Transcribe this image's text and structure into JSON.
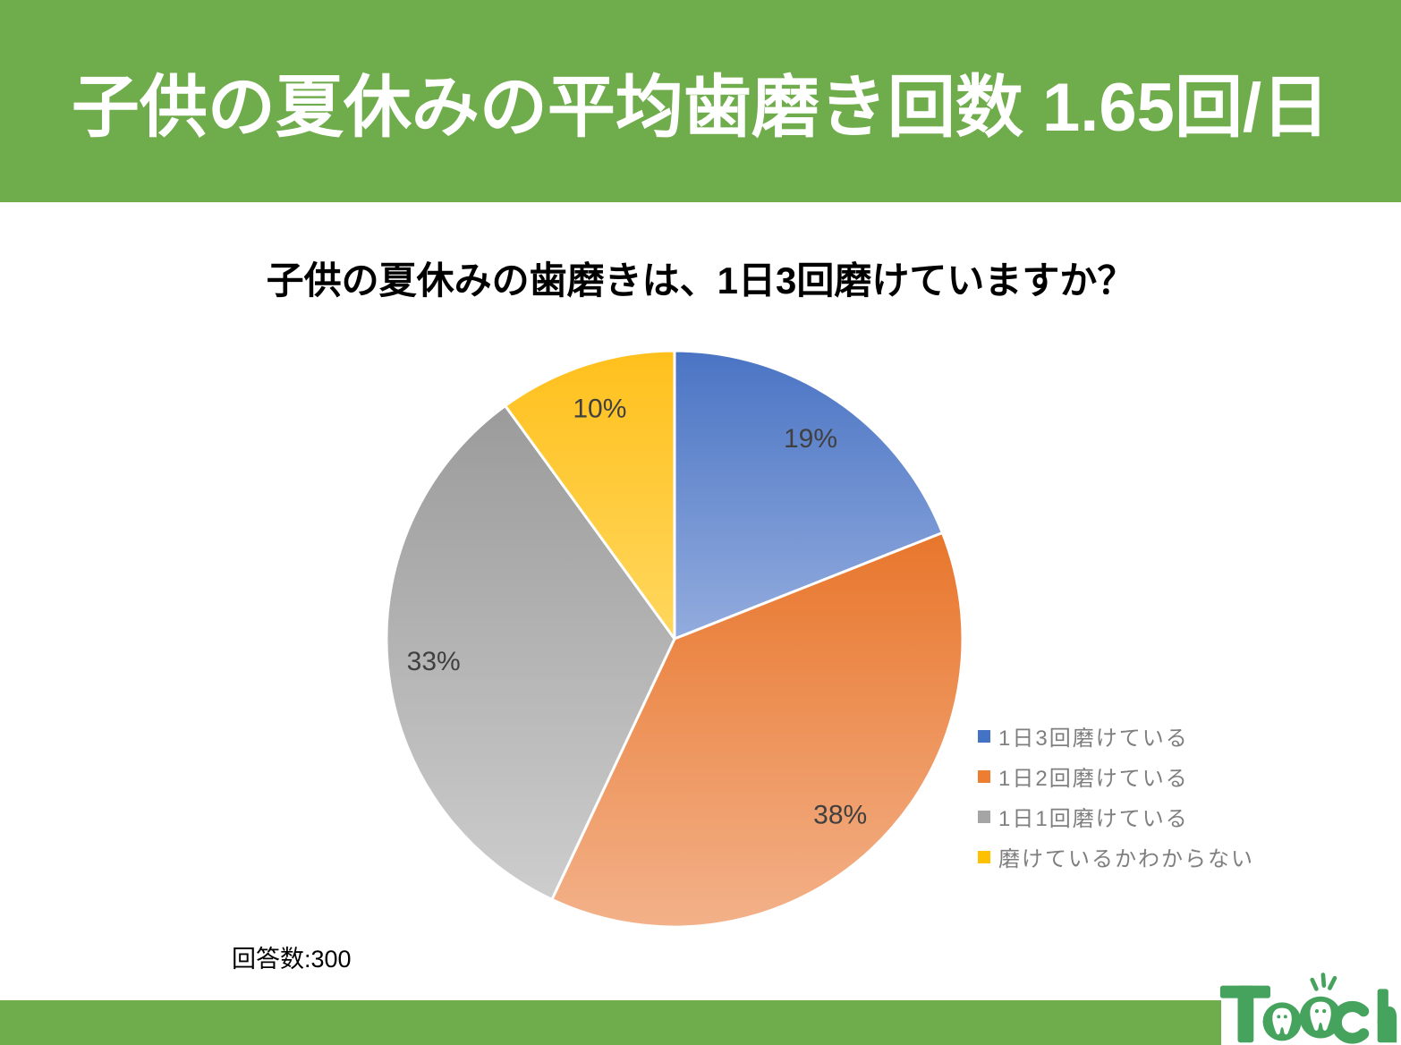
{
  "header": {
    "title": "子供の夏休みの平均歯磨き回数 1.65回/日",
    "bg_color": "#6FAC4B",
    "text_color": "#FFFFFF"
  },
  "chart_title": "子供の夏休みの歯磨きは、1日3回磨けていますか？",
  "respondents": "回答数:300",
  "chart_data": {
    "type": "pie",
    "title": "子供の夏休みの歯磨きは、1日3回磨けていますか？",
    "categories": [
      "1日3回磨けている",
      "1日2回磨けている",
      "1日1回磨けている",
      "磨けているかわからない"
    ],
    "values": [
      19,
      38,
      33,
      10
    ],
    "labels": [
      "19%",
      "38%",
      "33%",
      "10%"
    ],
    "unit": "percent",
    "sample_size": 300,
    "start_angle_deg": 0,
    "direction": "clockwise",
    "legend_position": "right",
    "label_color": "#404040",
    "colors": [
      {
        "name": "blue",
        "solid": "#4472C4",
        "grad_top": "#4A74C4",
        "grad_bottom": "#93ACDE"
      },
      {
        "name": "orange",
        "solid": "#ED7D31",
        "grad_top": "#E8762C",
        "grad_bottom": "#F3B189"
      },
      {
        "name": "gray",
        "solid": "#A5A5A5",
        "grad_top": "#9B9B9B",
        "grad_bottom": "#CDCDCD"
      },
      {
        "name": "yellow",
        "solid": "#FFC000",
        "grad_top": "#FFC01C",
        "grad_bottom": "#FFD75E"
      }
    ]
  },
  "footer": {
    "bar_color": "#6FAC4B",
    "logo_text": "Teech",
    "logo_color": "#45A35D"
  }
}
